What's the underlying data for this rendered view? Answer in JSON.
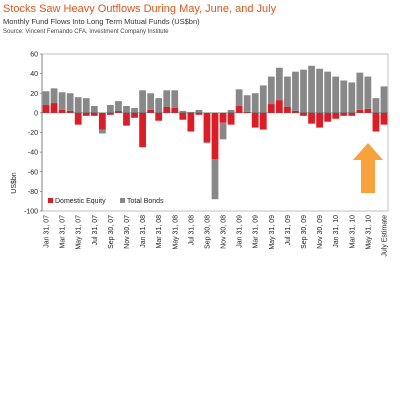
{
  "chart_data": {
    "type": "bar",
    "stacked": true,
    "title": "Stocks Saw Heavy Outflows During May, June, and July",
    "subtitle": "Monthly Fund Flows Into Long Term Mutual Funds (US$bn)",
    "source": "Source: Vincent Fernando CFA, Investment Company Institute",
    "ylabel": "US$bn",
    "categories": [
      "Jan 31, 07",
      null,
      "Mar 31, 07",
      null,
      "May 31, 07",
      null,
      "Jul 31, 07",
      null,
      "Sep 30, 07",
      null,
      "Nov 30, 07",
      null,
      "Jan 31, 08",
      null,
      "Mar 31, 08",
      null,
      "May 31, 08",
      null,
      "Jul 31, 08",
      null,
      "Sep 30, 08",
      null,
      "Nov 30, 08",
      null,
      "Jan 31, 09",
      null,
      "Mar 31, 09",
      null,
      "May 31, 09",
      null,
      "Jul 31, 09",
      null,
      "Sep 30, 09",
      null,
      "Nov 30, 09",
      null,
      "Jan 31, 10",
      null,
      "Mar 31, 10",
      null,
      "May 31, 10",
      null,
      "July Estimate"
    ],
    "series": [
      {
        "name": "Domestic Equity",
        "color": "#e01b24",
        "values": [
          8,
          10,
          3,
          2,
          -12,
          -3,
          -3,
          -17,
          -2,
          2,
          -13,
          -5,
          -35,
          3,
          -8,
          6,
          5,
          -7,
          -19,
          -2,
          -30,
          -47,
          -10,
          -12,
          7,
          1,
          -15,
          -17,
          9,
          13,
          6,
          2,
          -3,
          -11,
          -15,
          -9,
          -6,
          -3,
          -3,
          3,
          4,
          -19,
          -12
        ]
      },
      {
        "name": "Total Bonds",
        "color": "#888888",
        "values": [
          14,
          15,
          18,
          18,
          16,
          15,
          7,
          -4,
          8,
          10,
          7,
          5,
          23,
          17,
          15,
          17,
          18,
          2,
          1,
          3,
          -1,
          -41,
          -17,
          3,
          17,
          17,
          20,
          28,
          28,
          33,
          31,
          40,
          44,
          48,
          45,
          42,
          37,
          33,
          31,
          38,
          33,
          15,
          27
        ]
      }
    ],
    "ylim": [
      -100,
      60
    ],
    "yticks": [
      -100,
      -80,
      -60,
      -40,
      -20,
      0,
      20,
      40,
      60
    ],
    "grid": false,
    "legend": "lower left"
  }
}
